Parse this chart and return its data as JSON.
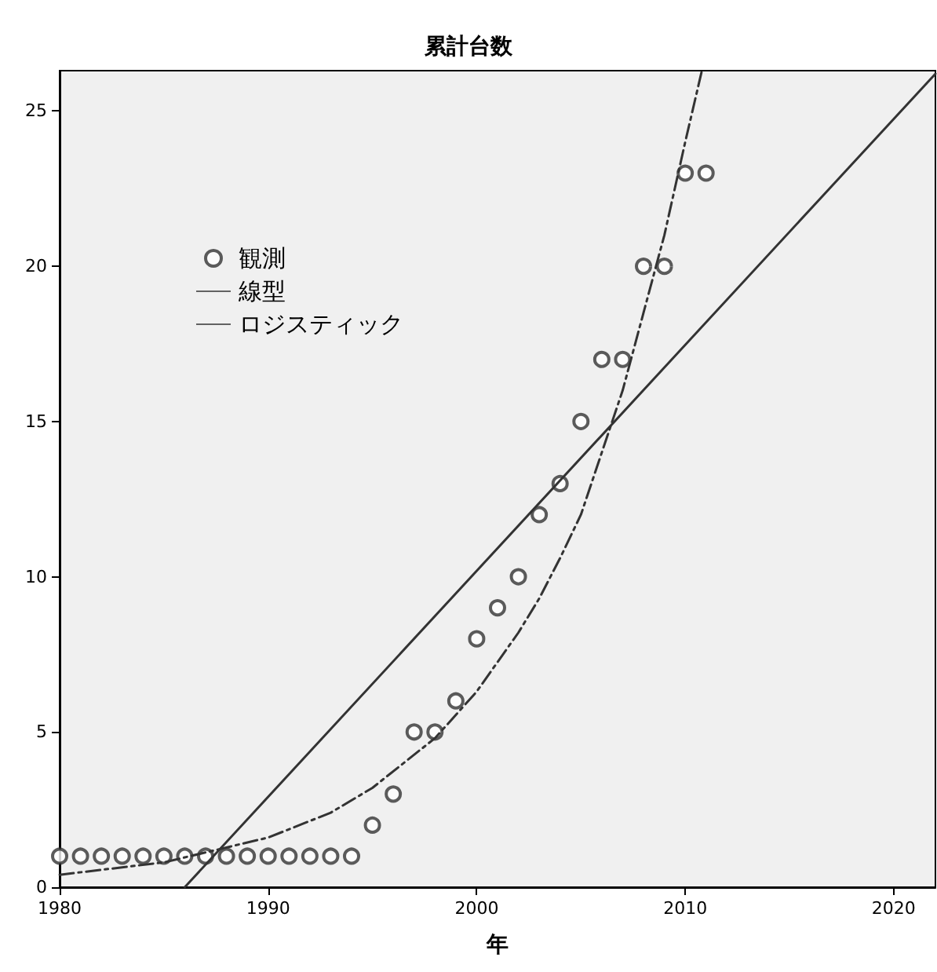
{
  "chart_data": {
    "type": "scatter",
    "title": "累計台数",
    "xlabel": "年",
    "xlim": [
      1980,
      2022
    ],
    "xticks": [
      1980,
      1990,
      2000,
      2010,
      2020
    ],
    "ylim": [
      0,
      26.3
    ],
    "yticks": [
      0,
      5,
      10,
      15,
      20,
      25
    ],
    "grid": false,
    "legend": "top left",
    "series": [
      {
        "name": "観測",
        "type": "scatter",
        "marker": "circle",
        "color": "#333333",
        "x": [
          1980,
          1981,
          1982,
          1983,
          1984,
          1985,
          1986,
          1987,
          1988,
          1989,
          1990,
          1991,
          1992,
          1993,
          1994,
          1995,
          1996,
          1997,
          1998,
          1999,
          2000,
          2001,
          2002,
          2003,
          2004,
          2005,
          2006,
          2007,
          2008,
          2009,
          2010,
          2011
        ],
        "values": [
          1,
          1,
          1,
          1,
          1,
          1,
          1,
          1,
          1,
          1,
          1,
          1,
          1,
          1,
          1,
          2,
          3,
          5,
          5,
          6,
          8,
          9,
          10,
          12,
          13,
          15,
          17,
          17,
          20,
          20,
          23,
          23
        ]
      },
      {
        "name": "線型",
        "type": "line",
        "marker": "none",
        "line_style": "solid",
        "color": "#333333",
        "x": [
          1986,
          2022
        ],
        "values": [
          0,
          26.2
        ]
      },
      {
        "name": "ロジスティック",
        "type": "line",
        "marker": "none",
        "line_style": "dashed",
        "color": "#333333",
        "x": [
          1980,
          1985,
          1990,
          1993,
          1995,
          1998,
          2000,
          2002,
          2003,
          2004,
          2005,
          2006,
          2007,
          2008,
          2009,
          2010,
          2010.8
        ],
        "values": [
          0.4,
          0.8,
          1.6,
          2.4,
          3.2,
          4.8,
          6.3,
          8.2,
          9.3,
          10.6,
          12,
          14,
          16,
          18.5,
          21,
          24,
          26.3
        ]
      }
    ]
  }
}
